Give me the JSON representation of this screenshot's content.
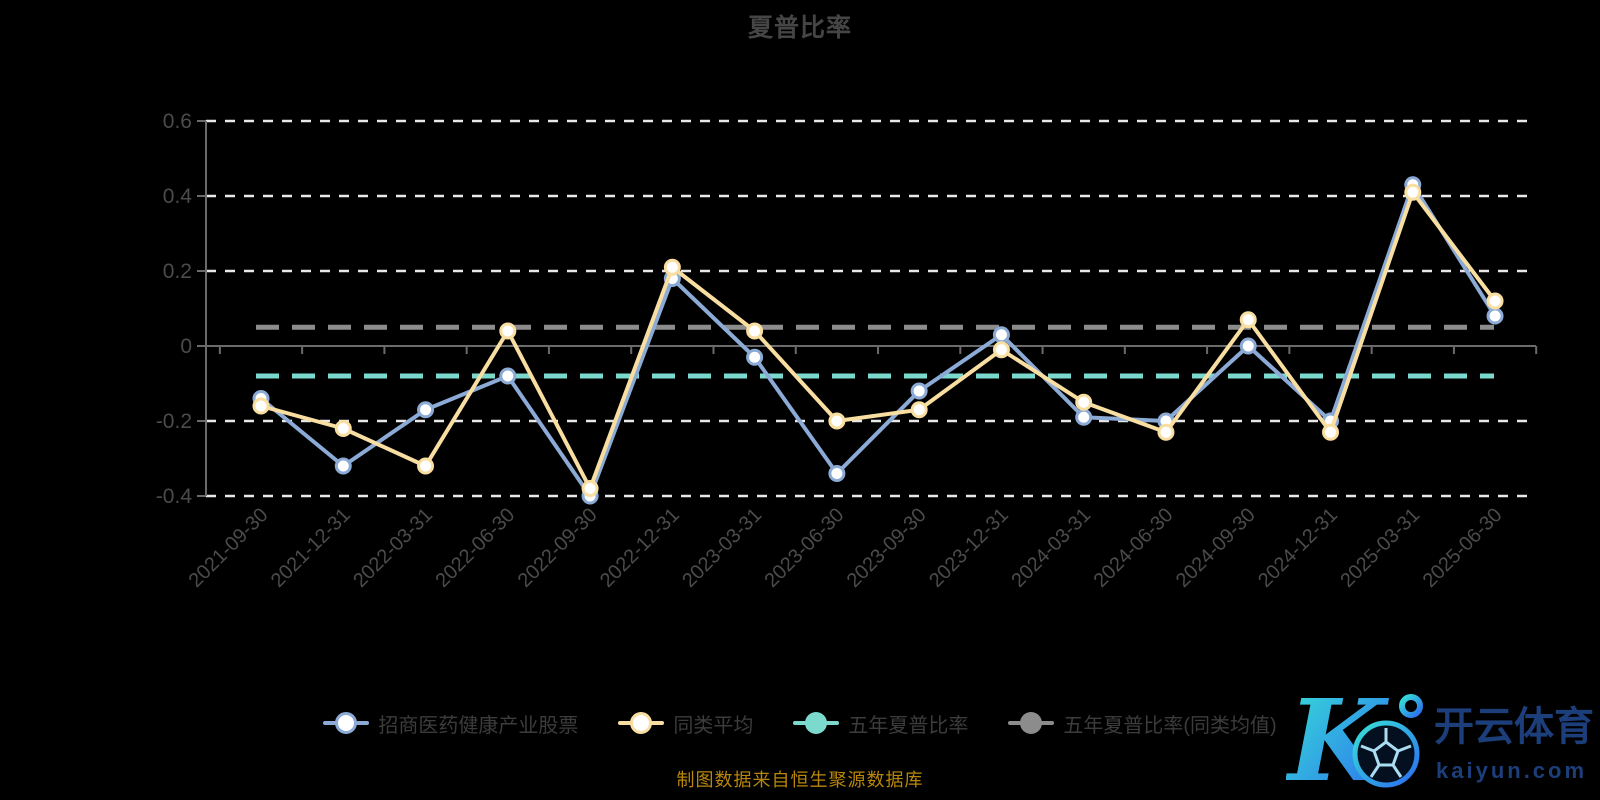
{
  "title": "夏普比率",
  "footer": {
    "text": "制图数据来自恒生聚源数据库",
    "color": "#b8860b"
  },
  "watermark": {
    "brand_cn": "开云体育",
    "brand_domain": "kaiyun.com",
    "text_color": "#1c3e7a",
    "gradient": [
      "#38e1d6",
      "#2b6cf0"
    ],
    "icon": "soccer-ball-icon"
  },
  "colors": {
    "background": "#000000",
    "title_text": "#454545",
    "axis_text": "#4b4b4b",
    "axis_line": "#6b6b6b",
    "gridline": "#e8e8e8",
    "legend_text": "#3c3c3c"
  },
  "chart_data": {
    "type": "line",
    "title": "夏普比率",
    "categories": [
      "2021-09-30",
      "2021-12-31",
      "2022-03-31",
      "2022-06-30",
      "2022-09-30",
      "2022-12-31",
      "2023-03-31",
      "2023-06-30",
      "2023-09-30",
      "2023-12-31",
      "2024-03-31",
      "2024-06-30",
      "2024-09-30",
      "2024-12-31",
      "2025-03-31",
      "2025-06-30"
    ],
    "series": [
      {
        "name": "招商医药健康产业股票",
        "color": "#8caad6",
        "marker": "hollow-circle",
        "values": [
          -0.14,
          -0.32,
          -0.17,
          -0.08,
          -0.4,
          0.18,
          -0.03,
          -0.34,
          -0.12,
          0.03,
          -0.19,
          -0.2,
          0.0,
          -0.2,
          0.43,
          0.08
        ]
      },
      {
        "name": "同类平均",
        "color": "#f8dea0",
        "marker": "hollow-circle",
        "values": [
          -0.16,
          -0.22,
          -0.32,
          0.04,
          -0.38,
          0.21,
          0.04,
          -0.2,
          -0.17,
          -0.01,
          -0.15,
          -0.23,
          0.07,
          -0.23,
          0.41,
          0.12
        ]
      }
    ],
    "reference_lines": [
      {
        "name": "五年夏普比率",
        "color": "#7cd9ce",
        "value": -0.08,
        "style": "dashed"
      },
      {
        "name": "五年夏普比率(同类均值)",
        "color": "#8c8c8c",
        "value": 0.05,
        "style": "dashed"
      }
    ],
    "ylim": [
      -0.4,
      0.6
    ],
    "yticks": [
      0.6,
      0.4,
      0.2,
      0,
      -0.2,
      -0.4
    ],
    "xlabel": "",
    "ylabel": "",
    "grid": "horizontal-dashed-white",
    "legend_position": "bottom",
    "x_label_rotation": -45
  }
}
